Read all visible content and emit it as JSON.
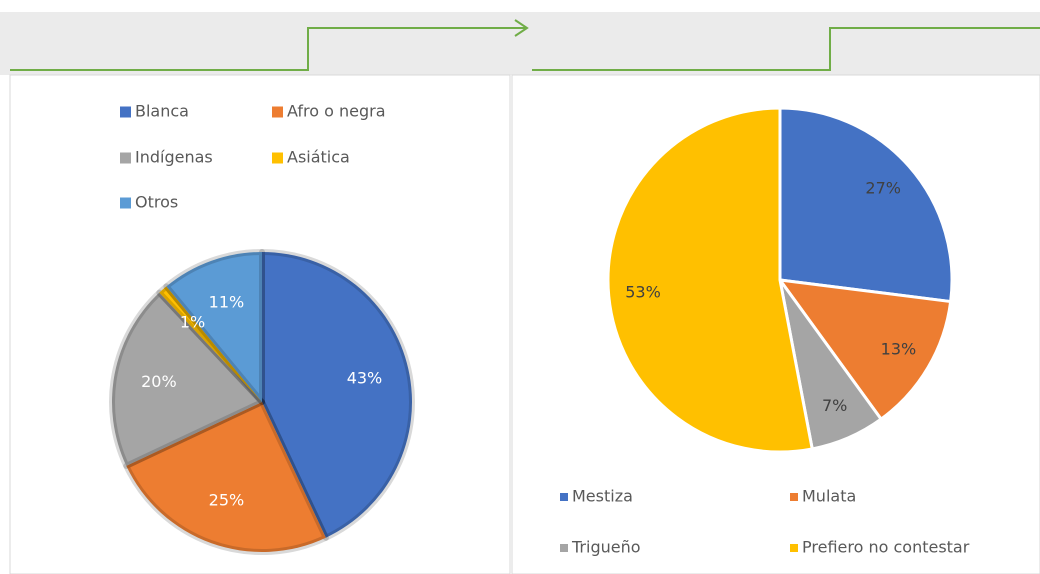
{
  "chart_data": [
    {
      "type": "pie",
      "categories": [
        "Blanca",
        "Afro o negra",
        "Indígenas",
        "Asiática",
        "Otros"
      ],
      "values": [
        43,
        25,
        20,
        1,
        11
      ],
      "value_labels": [
        "43%",
        "25%",
        "20%",
        "1%",
        "11%"
      ],
      "colors": [
        "#4472c4",
        "#ed7d31",
        "#a5a5a5",
        "#ffc000",
        "#5b9bd5"
      ],
      "legend": "top"
    },
    {
      "type": "pie",
      "categories": [
        "Mestiza",
        "Mulata",
        "Trigueño",
        "Prefiero no contestar"
      ],
      "values": [
        27,
        13,
        7,
        53
      ],
      "value_labels": [
        "27%",
        "13%",
        "7%",
        "53%"
      ],
      "colors": [
        "#4472c4",
        "#ed7d31",
        "#a5a5a5",
        "#ffc000"
      ],
      "legend": "bottom"
    }
  ]
}
